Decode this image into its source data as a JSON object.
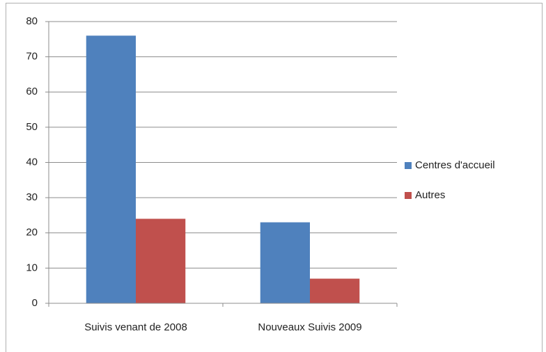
{
  "chart_data": {
    "type": "bar",
    "categories": [
      "Suivis venant de 2008",
      "Nouveaux Suivis 2009"
    ],
    "series": [
      {
        "name": "Centres d'accueil",
        "color": "#4f81bd",
        "values": [
          76,
          23
        ]
      },
      {
        "name": "Autres",
        "color": "#c0504d",
        "values": [
          24,
          7
        ]
      }
    ],
    "ylim": [
      0,
      80
    ],
    "yticks": [
      0,
      10,
      20,
      30,
      40,
      50,
      60,
      70,
      80
    ],
    "grid": true,
    "legend": "right"
  }
}
